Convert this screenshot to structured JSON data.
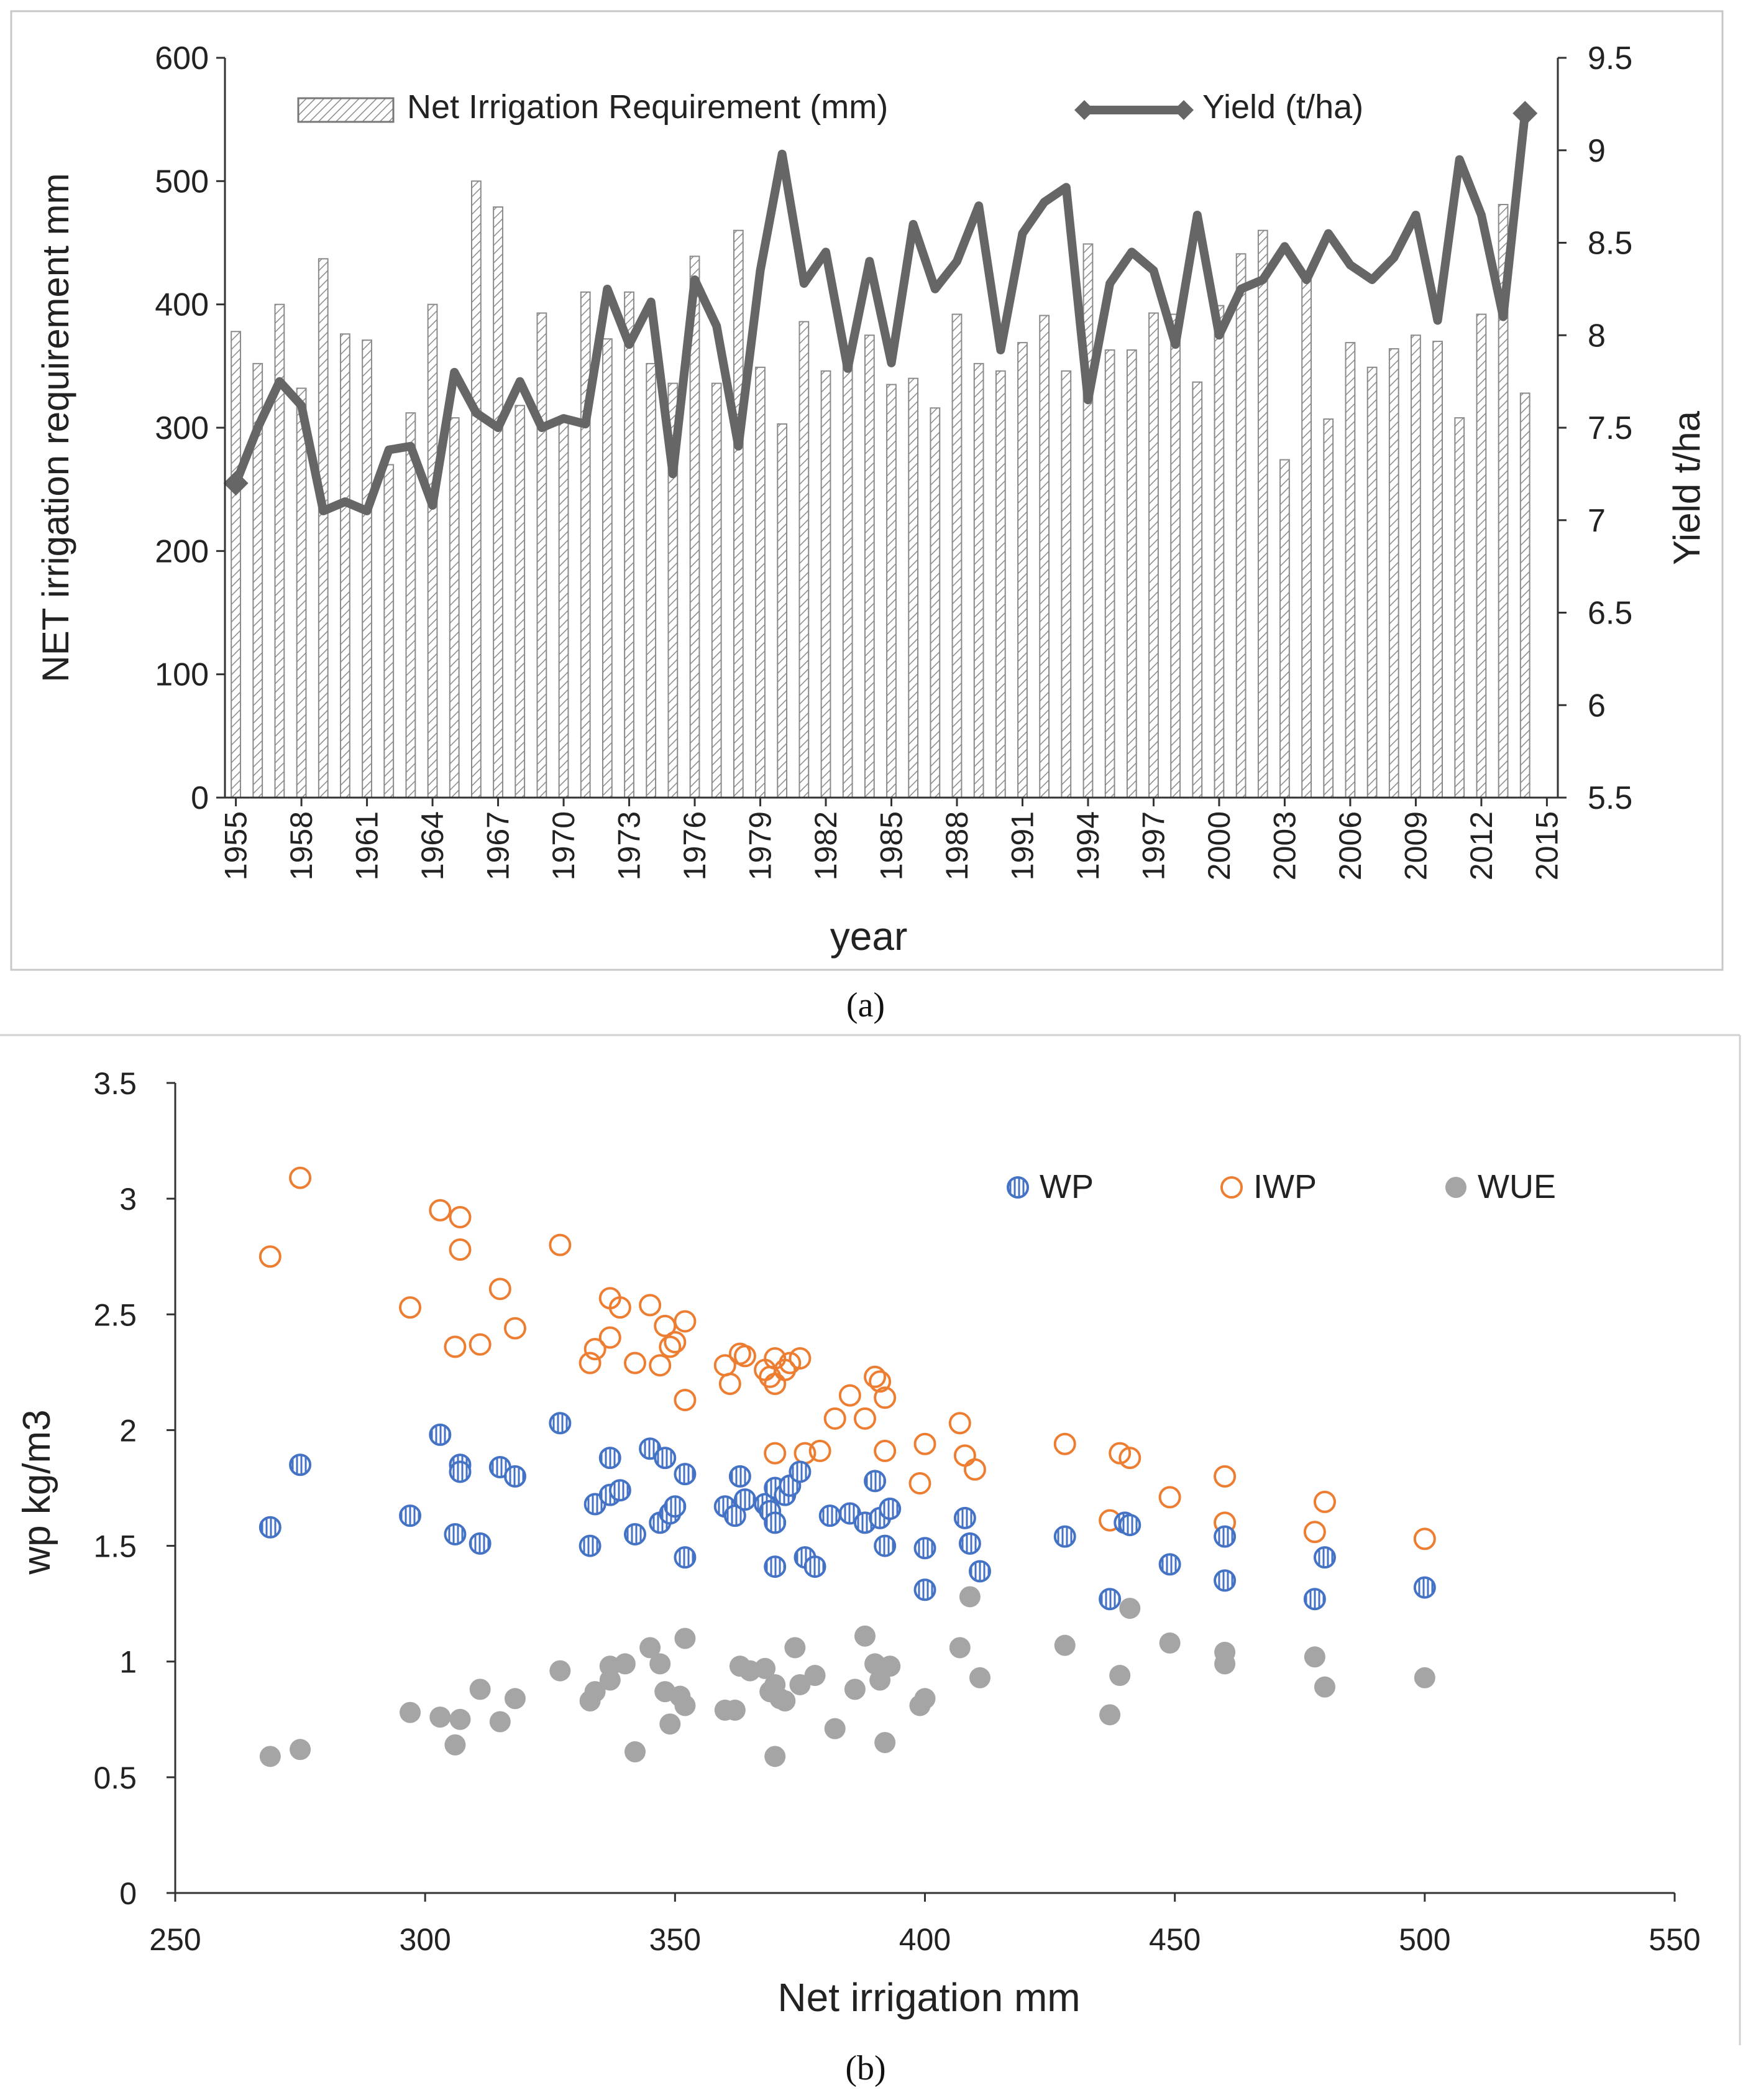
{
  "chart_data": [
    {
      "id": "a",
      "type": "bar",
      "caption": "(a)",
      "xlabel": "year",
      "ylabel": "NET irrigation requirement  mm",
      "y2label": "Yield t/ha",
      "ylim": [
        0,
        600
      ],
      "y2lim": [
        5.5,
        9.5
      ],
      "yticks": [
        "0",
        "100",
        "200",
        "300",
        "400",
        "500",
        "600"
      ],
      "y2ticks": [
        "5.5",
        "6",
        "6.5",
        "7",
        "7.5",
        "8",
        "8.5",
        "9",
        "9.5"
      ],
      "xticks": [
        "1955",
        "1958",
        "1961",
        "1964",
        "1967",
        "1970",
        "1973",
        "1976",
        "1979",
        "1982",
        "1985",
        "1988",
        "1991",
        "1994",
        "1997",
        "2000",
        "2003",
        "2006",
        "2009",
        "2012",
        "2015"
      ],
      "legend": [
        "Net Irrigation Requirement (mm)",
        "Yield (t/ha)"
      ],
      "years": [
        1955,
        1956,
        1957,
        1958,
        1959,
        1960,
        1961,
        1962,
        1963,
        1964,
        1965,
        1966,
        1967,
        1968,
        1969,
        1970,
        1971,
        1972,
        1973,
        1974,
        1975,
        1976,
        1977,
        1978,
        1979,
        1980,
        1981,
        1982,
        1983,
        1984,
        1985,
        1986,
        1987,
        1988,
        1989,
        1990,
        1991,
        1992,
        1993,
        1994,
        1995,
        1996,
        1997,
        1998,
        1999,
        2000,
        2001,
        2002,
        2003,
        2004,
        2005,
        2006,
        2007,
        2008,
        2009,
        2010,
        2011,
        2012,
        2013,
        2014,
        2015
      ],
      "series": [
        {
          "name": "Net Irrigation Requirement (mm)",
          "kind": "bar",
          "values": [
            378,
            352,
            400,
            332,
            437,
            376,
            371,
            270,
            312,
            400,
            308,
            500,
            479,
            318,
            393,
            308,
            410,
            372,
            410,
            352,
            336,
            439,
            336,
            460,
            349,
            303,
            386,
            346,
            353,
            375,
            335,
            340,
            316,
            392,
            352,
            346,
            369,
            391,
            346,
            449,
            363,
            363,
            393,
            392,
            337,
            399,
            441,
            460,
            274,
            420,
            307,
            369,
            349,
            364,
            375,
            370,
            308,
            392,
            481,
            328,
            null
          ]
        },
        {
          "name": "Yield (t/ha)",
          "kind": "line",
          "values": [
            7.2,
            7.5,
            7.75,
            7.62,
            7.05,
            7.1,
            7.05,
            7.38,
            7.4,
            7.08,
            7.8,
            7.58,
            7.5,
            7.75,
            7.5,
            7.55,
            7.52,
            8.25,
            7.95,
            8.18,
            7.25,
            8.3,
            8.05,
            7.4,
            8.35,
            8.98,
            8.28,
            8.45,
            7.82,
            8.4,
            7.85,
            8.6,
            8.25,
            8.4,
            8.7,
            7.92,
            8.55,
            8.72,
            8.8,
            7.65,
            8.28,
            8.45,
            8.35,
            7.95,
            8.65,
            8.0,
            8.25,
            8.3,
            8.48,
            8.3,
            8.55,
            8.38,
            8.3,
            8.42,
            8.65,
            8.08,
            8.95,
            8.65,
            8.1,
            9.2,
            null
          ]
        }
      ]
    },
    {
      "id": "b",
      "type": "scatter",
      "caption": "(b)",
      "xlabel": "Net irrigation  mm",
      "ylabel": "wp  kg/m3",
      "xlim": [
        250,
        550
      ],
      "ylim": [
        0,
        3.5
      ],
      "xticks": [
        "250",
        "300",
        "350",
        "400",
        "450",
        "500",
        "550"
      ],
      "yticks": [
        "0",
        "0.5",
        "1",
        "1.5",
        "2",
        "2.5",
        "3",
        "3.5"
      ],
      "legend": [
        "WP",
        "IWP",
        "WUE"
      ],
      "series": [
        {
          "name": "WP",
          "color": "#4472C4",
          "marker": "hatched-circle",
          "points": [
            [
              269,
              1.58
            ],
            [
              275,
              1.85
            ],
            [
              297,
              1.63
            ],
            [
              303,
              1.98
            ],
            [
              306,
              1.55
            ],
            [
              307,
              1.85
            ],
            [
              307,
              1.82
            ],
            [
              311,
              1.51
            ],
            [
              315,
              1.84
            ],
            [
              318,
              1.8
            ],
            [
              327,
              2.03
            ],
            [
              333,
              1.5
            ],
            [
              334,
              1.68
            ],
            [
              337,
              1.72
            ],
            [
              337,
              1.88
            ],
            [
              339,
              1.74
            ],
            [
              342,
              1.55
            ],
            [
              345,
              1.92
            ],
            [
              348,
              1.88
            ],
            [
              347,
              1.6
            ],
            [
              349,
              1.64
            ],
            [
              350,
              1.67
            ],
            [
              352,
              1.45
            ],
            [
              352,
              1.81
            ],
            [
              360,
              1.67
            ],
            [
              362,
              1.63
            ],
            [
              363,
              1.8
            ],
            [
              364,
              1.7
            ],
            [
              368,
              1.68
            ],
            [
              369,
              1.65
            ],
            [
              370,
              1.6
            ],
            [
              370,
              1.75
            ],
            [
              370,
              1.41
            ],
            [
              372,
              1.72
            ],
            [
              373,
              1.76
            ],
            [
              375,
              1.82
            ],
            [
              376,
              1.45
            ],
            [
              378,
              1.41
            ],
            [
              381,
              1.63
            ],
            [
              385,
              1.64
            ],
            [
              388,
              1.6
            ],
            [
              390,
              1.78
            ],
            [
              391,
              1.62
            ],
            [
              392,
              1.5
            ],
            [
              393,
              1.66
            ],
            [
              400,
              1.31
            ],
            [
              400,
              1.49
            ],
            [
              408,
              1.62
            ],
            [
              409,
              1.51
            ],
            [
              411,
              1.39
            ],
            [
              428,
              1.54
            ],
            [
              437,
              1.27
            ],
            [
              440,
              1.6
            ],
            [
              441,
              1.59
            ],
            [
              449,
              1.42
            ],
            [
              460,
              1.54
            ],
            [
              460,
              1.35
            ],
            [
              478,
              1.27
            ],
            [
              480,
              1.45
            ],
            [
              500,
              1.32
            ]
          ]
        },
        {
          "name": "IWP",
          "color": "#ED7D31",
          "marker": "open-circle",
          "points": [
            [
              269,
              2.75
            ],
            [
              275,
              3.09
            ],
            [
              297,
              2.53
            ],
            [
              303,
              2.95
            ],
            [
              306,
              2.36
            ],
            [
              307,
              2.92
            ],
            [
              307,
              2.78
            ],
            [
              311,
              2.37
            ],
            [
              315,
              2.61
            ],
            [
              318,
              2.44
            ],
            [
              327,
              2.8
            ],
            [
              333,
              2.29
            ],
            [
              334,
              2.35
            ],
            [
              337,
              2.4
            ],
            [
              337,
              2.57
            ],
            [
              339,
              2.53
            ],
            [
              342,
              2.29
            ],
            [
              345,
              2.54
            ],
            [
              347,
              2.28
            ],
            [
              348,
              2.45
            ],
            [
              349,
              2.36
            ],
            [
              350,
              2.38
            ],
            [
              352,
              2.13
            ],
            [
              352,
              2.47
            ],
            [
              360,
              2.28
            ],
            [
              361,
              2.2
            ],
            [
              363,
              2.33
            ],
            [
              364,
              2.32
            ],
            [
              368,
              2.26
            ],
            [
              369,
              2.23
            ],
            [
              370,
              2.2
            ],
            [
              370,
              2.31
            ],
            [
              370,
              1.9
            ],
            [
              372,
              2.26
            ],
            [
              373,
              2.29
            ],
            [
              375,
              2.31
            ],
            [
              376,
              1.9
            ],
            [
              379,
              1.91
            ],
            [
              382,
              2.05
            ],
            [
              385,
              2.15
            ],
            [
              388,
              2.05
            ],
            [
              390,
              2.23
            ],
            [
              391,
              2.21
            ],
            [
              392,
              2.14
            ],
            [
              392,
              1.91
            ],
            [
              399,
              1.77
            ],
            [
              400,
              1.94
            ],
            [
              407,
              2.03
            ],
            [
              408,
              1.89
            ],
            [
              410,
              1.83
            ],
            [
              428,
              1.94
            ],
            [
              437,
              1.61
            ],
            [
              439,
              1.9
            ],
            [
              441,
              1.88
            ],
            [
              449,
              1.71
            ],
            [
              460,
              1.8
            ],
            [
              460,
              1.6
            ],
            [
              478,
              1.56
            ],
            [
              480,
              1.69
            ],
            [
              500,
              1.53
            ]
          ]
        },
        {
          "name": "WUE",
          "color": "#A5A5A5",
          "marker": "filled-circle",
          "points": [
            [
              269,
              0.59
            ],
            [
              275,
              0.62
            ],
            [
              297,
              0.78
            ],
            [
              303,
              0.76
            ],
            [
              306,
              0.64
            ],
            [
              307,
              0.75
            ],
            [
              311,
              0.88
            ],
            [
              315,
              0.74
            ],
            [
              318,
              0.84
            ],
            [
              327,
              0.96
            ],
            [
              333,
              0.83
            ],
            [
              334,
              0.87
            ],
            [
              337,
              0.92
            ],
            [
              337,
              0.98
            ],
            [
              340,
              0.99
            ],
            [
              342,
              0.61
            ],
            [
              345,
              1.06
            ],
            [
              347,
              0.99
            ],
            [
              348,
              0.87
            ],
            [
              349,
              0.73
            ],
            [
              351,
              0.85
            ],
            [
              352,
              0.81
            ],
            [
              352,
              1.1
            ],
            [
              360,
              0.79
            ],
            [
              362,
              0.79
            ],
            [
              363,
              0.98
            ],
            [
              365,
              0.96
            ],
            [
              368,
              0.97
            ],
            [
              369,
              0.87
            ],
            [
              370,
              0.59
            ],
            [
              370,
              0.9
            ],
            [
              371,
              0.84
            ],
            [
              372,
              0.83
            ],
            [
              374,
              1.06
            ],
            [
              375,
              0.9
            ],
            [
              378,
              0.94
            ],
            [
              382,
              0.71
            ],
            [
              386,
              0.88
            ],
            [
              388,
              1.11
            ],
            [
              390,
              0.99
            ],
            [
              391,
              0.92
            ],
            [
              392,
              0.65
            ],
            [
              393,
              0.98
            ],
            [
              399,
              0.81
            ],
            [
              400,
              0.84
            ],
            [
              407,
              1.06
            ],
            [
              409,
              1.28
            ],
            [
              411,
              0.93
            ],
            [
              428,
              1.07
            ],
            [
              437,
              0.77
            ],
            [
              439,
              0.94
            ],
            [
              441,
              1.23
            ],
            [
              449,
              1.08
            ],
            [
              460,
              1.04
            ],
            [
              460,
              0.99
            ],
            [
              478,
              1.02
            ],
            [
              480,
              0.89
            ],
            [
              500,
              0.93
            ]
          ]
        }
      ]
    }
  ]
}
